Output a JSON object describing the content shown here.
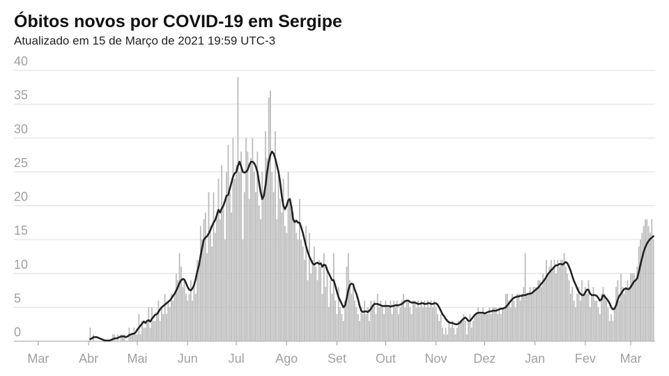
{
  "chart_data": {
    "type": "bar",
    "title": "Óbitos novos por COVID-19 em Sergipe",
    "subtitle": "Atualizado em 15 de Março de 2021 19:59 UTC-3",
    "x": [
      32,
      33,
      34,
      35,
      36,
      37,
      38,
      39,
      40,
      41,
      42,
      43,
      44,
      45,
      46,
      47,
      48,
      49,
      50,
      51,
      52,
      53,
      54,
      55,
      56,
      57,
      58,
      59,
      60,
      61,
      62,
      63,
      64,
      65,
      66,
      67,
      68,
      69,
      70,
      71,
      72,
      73,
      74,
      75,
      76,
      77,
      78,
      79,
      80,
      81,
      82,
      83,
      84,
      85,
      86,
      87,
      88,
      89,
      90,
      91,
      92,
      93,
      94,
      95,
      96,
      97,
      98,
      99,
      100,
      101,
      102,
      103,
      104,
      105,
      106,
      107,
      108,
      109,
      110,
      111,
      112,
      113,
      114,
      115,
      116,
      117,
      118,
      119,
      120,
      121,
      122,
      123,
      124,
      125,
      126,
      127,
      128,
      129,
      130,
      131,
      132,
      133,
      134,
      135,
      136,
      137,
      138,
      139,
      140,
      141,
      142,
      143,
      144,
      145,
      146,
      147,
      148,
      149,
      150,
      151,
      152,
      153,
      154,
      155,
      156,
      157,
      158,
      159,
      160,
      161,
      162,
      163,
      164,
      165,
      166,
      167,
      168,
      169,
      170,
      171,
      172,
      173,
      174,
      175,
      176,
      177,
      178,
      179,
      180,
      181,
      182,
      183,
      184,
      185,
      186,
      187,
      188,
      189,
      190,
      191,
      192,
      193,
      194,
      195,
      196,
      197,
      198,
      199,
      200,
      201,
      202,
      203,
      204,
      205,
      206,
      207,
      208,
      209,
      210,
      211,
      212,
      213,
      214,
      215,
      216,
      217,
      218,
      219,
      220,
      221,
      222,
      223,
      224,
      225,
      226,
      227,
      228,
      229,
      230,
      231,
      232,
      233,
      234,
      235,
      236,
      237,
      238,
      239,
      240,
      241,
      242,
      243,
      244,
      245,
      246,
      247,
      248,
      249,
      250,
      251,
      252,
      253,
      254,
      255,
      256,
      257,
      258,
      259,
      260,
      261,
      262,
      263,
      264,
      265,
      266,
      267,
      268,
      269,
      270,
      271,
      272,
      273,
      274,
      275,
      276,
      277,
      278,
      279,
      280,
      281,
      282,
      283,
      284,
      285,
      286,
      287,
      288,
      289,
      290,
      291,
      292,
      293,
      294,
      295,
      296,
      297,
      298,
      299,
      300,
      301,
      302,
      303,
      304,
      305,
      306,
      307,
      308,
      309,
      310,
      311,
      312,
      313,
      314,
      315,
      316,
      317,
      318,
      319,
      320,
      321,
      322,
      323,
      324,
      325,
      326,
      327,
      328,
      329,
      330,
      331,
      332,
      333,
      334,
      335,
      336,
      337,
      338,
      339,
      340,
      341,
      342,
      343,
      344,
      345,
      346,
      347,
      348,
      349,
      350,
      351,
      352,
      353,
      354,
      355,
      356,
      357,
      358,
      359,
      360,
      361,
      362,
      363,
      364,
      365,
      366,
      367,
      368,
      369,
      370,
      371,
      372,
      373,
      374,
      375,
      376,
      377,
      378,
      379
    ],
    "series": [
      {
        "type": "bar",
        "color": "#bdbdbd",
        "values": [
          2,
          0,
          1,
          0,
          0,
          0,
          0,
          0,
          0,
          0,
          0,
          0,
          0,
          0,
          1,
          1,
          0,
          1,
          0,
          1,
          1,
          1,
          0,
          0,
          2,
          1,
          1,
          2,
          1,
          1,
          4,
          1,
          3,
          2,
          2,
          3,
          5,
          2,
          5,
          3,
          3,
          4,
          6,
          3,
          5,
          4,
          7,
          4,
          6,
          5,
          7,
          6,
          7,
          10,
          9,
          13,
          11,
          8,
          9,
          7,
          6,
          7,
          9,
          6,
          8,
          7,
          12,
          11,
          17,
          15,
          18,
          19,
          13,
          22,
          17,
          14,
          22,
          16,
          19,
          24,
          18,
          26,
          20,
          15,
          25,
          29,
          22,
          19,
          30,
          24,
          26,
          39,
          25,
          28,
          15,
          22,
          30,
          28,
          21,
          27,
          30,
          25,
          22,
          28,
          20,
          18,
          25,
          22,
          31,
          27,
          36,
          37,
          25,
          22,
          31,
          18,
          25,
          21,
          19,
          24,
          17,
          16,
          25,
          21,
          20,
          19,
          18,
          16,
          15,
          21,
          15,
          14,
          12,
          17,
          9,
          16,
          10,
          12,
          14,
          11,
          9,
          12,
          11,
          7,
          13,
          8,
          11,
          5,
          9,
          7,
          13,
          6,
          4,
          8,
          5,
          4,
          3,
          6,
          11,
          13,
          9,
          7,
          8,
          6,
          5,
          4,
          3,
          5,
          4,
          6,
          4,
          5,
          3,
          6,
          5,
          6,
          4,
          7,
          5,
          6,
          5,
          4,
          6,
          5,
          5,
          6,
          4,
          6,
          5,
          6,
          4,
          5,
          6,
          7,
          5,
          6,
          6,
          5,
          4,
          6,
          6,
          5,
          6,
          5,
          6,
          5,
          6,
          5,
          6,
          5,
          6,
          5,
          6,
          5,
          4,
          3,
          4,
          2,
          1,
          2,
          1,
          3,
          2,
          3,
          2,
          1,
          2,
          3,
          3,
          3,
          4,
          3,
          1,
          3,
          4,
          2,
          3,
          4,
          4,
          5,
          4,
          4,
          5,
          4,
          4,
          4,
          5,
          4,
          5,
          5,
          5,
          4,
          5,
          4,
          5,
          5,
          7,
          7,
          6,
          5,
          7,
          6,
          5,
          7,
          7,
          6,
          7,
          8,
          13,
          7,
          7,
          8,
          7,
          8,
          8,
          8,
          9,
          9,
          8,
          10,
          9,
          12,
          10,
          11,
          12,
          11,
          12,
          10,
          12,
          11,
          12,
          12,
          13,
          11,
          10,
          9,
          7,
          8,
          6,
          5,
          7,
          8,
          6,
          9,
          7,
          8,
          7,
          9,
          5,
          7,
          8,
          6,
          6,
          5,
          4,
          7,
          8,
          7,
          6,
          5,
          3,
          4,
          3,
          5,
          8,
          9,
          6,
          10,
          8,
          7,
          8,
          9,
          8,
          10,
          10,
          10,
          9,
          11,
          14,
          15,
          16,
          17,
          18,
          18,
          17,
          16,
          18,
          15
        ]
      },
      {
        "type": "line",
        "color": "#222222",
        "values": [
          0.3,
          0.4,
          0.6,
          0.6,
          0.6,
          0.5,
          0.4,
          0.3,
          0.2,
          0.1,
          0.1,
          0.1,
          0.1,
          0.2,
          0.3,
          0.4,
          0.4,
          0.5,
          0.6,
          0.7,
          0.7,
          0.7,
          0.6,
          0.7,
          0.9,
          1.0,
          1.1,
          1.1,
          1.3,
          1.7,
          2.0,
          2.3,
          2.6,
          2.9,
          2.7,
          3.0,
          3.1,
          2.9,
          3.3,
          3.6,
          3.9,
          4.0,
          4.3,
          4.7,
          5.0,
          5.2,
          5.4,
          5.6,
          5.8,
          6.0,
          6.3,
          6.7,
          7.0,
          7.5,
          8.0,
          8.6,
          9.0,
          9.2,
          9.1,
          8.6,
          8.0,
          7.6,
          7.5,
          7.8,
          8.3,
          9.2,
          10.3,
          11.2,
          12.6,
          13.9,
          15.0,
          15.3,
          15.5,
          15.9,
          16.4,
          17.0,
          17.5,
          17.9,
          18.6,
          19.4,
          19.0,
          19.6,
          20.0,
          20.7,
          21.5,
          21.6,
          22.5,
          23.4,
          24.3,
          24.8,
          25.0,
          25.9,
          26.5,
          25.8,
          25.0,
          24.9,
          25.0,
          25.3,
          26.0,
          26.5,
          26.5,
          26.3,
          25.8,
          25.0,
          23.5,
          22.0,
          21.0,
          21.5,
          23.0,
          25.0,
          26.5,
          27.5,
          28.0,
          27.7,
          27.0,
          26.0,
          25.0,
          23.5,
          21.5,
          20.0,
          19.5,
          20.0,
          20.8,
          21.0,
          19.8,
          18.0,
          17.6,
          17.8,
          17.5,
          17.5,
          16.8,
          16.0,
          15.0,
          14.0,
          13.2,
          12.5,
          12.0,
          11.5,
          11.3,
          11.5,
          11.6,
          11.4,
          11.5,
          11.0,
          11.3,
          11.2,
          10.5,
          10.0,
          9.5,
          9.0,
          9.0,
          8.2,
          7.3,
          6.5,
          6.0,
          5.5,
          5.0,
          5.3,
          6.3,
          7.5,
          8.3,
          8.5,
          8.4,
          7.6,
          7.0,
          6.2,
          5.2,
          4.5,
          4.3,
          4.4,
          4.4,
          4.3,
          4.5,
          4.8,
          5.2,
          5.5,
          5.5,
          5.5,
          5.4,
          5.3,
          5.2,
          5.2,
          5.2,
          5.2,
          5.2,
          5.1,
          5.2,
          5.2,
          5.3,
          5.3,
          5.3,
          5.4,
          5.5,
          5.7,
          5.9,
          6.0,
          6.0,
          5.8,
          5.7,
          5.7,
          5.7,
          5.6,
          5.5,
          5.5,
          5.6,
          5.6,
          5.5,
          5.5,
          5.6,
          5.6,
          5.5,
          5.5,
          5.6,
          5.6,
          5.4,
          5.0,
          4.5,
          4.0,
          3.7,
          3.3,
          3.0,
          2.8,
          2.7,
          2.7,
          2.6,
          2.5,
          2.5,
          2.6,
          2.8,
          3.1,
          3.3,
          3.5,
          3.3,
          3.0,
          3.0,
          3.3,
          3.6,
          3.9,
          4.1,
          4.2,
          4.2,
          4.2,
          4.2,
          4.1,
          4.2,
          4.3,
          4.4,
          4.4,
          4.5,
          4.5,
          4.5,
          4.6,
          4.7,
          4.8,
          4.8,
          4.9,
          5.0,
          5.3,
          5.6,
          5.9,
          6.2,
          6.4,
          6.5,
          6.6,
          6.6,
          6.7,
          6.7,
          6.8,
          6.8,
          6.9,
          7.0,
          7.0,
          7.1,
          7.3,
          7.5,
          7.7,
          7.9,
          8.2,
          8.5,
          8.8,
          9.1,
          9.5,
          9.9,
          10.2,
          10.5,
          10.7,
          11.0,
          11.2,
          11.2,
          11.4,
          11.4,
          11.3,
          11.5,
          11.7,
          11.5,
          11.0,
          10.4,
          9.6,
          8.9,
          8.4,
          7.8,
          7.3,
          7.0,
          6.8,
          6.8,
          7.2,
          7.6,
          7.6,
          7.0,
          6.8,
          6.8,
          6.8,
          6.7,
          6.4,
          6.0,
          6.2,
          6.8,
          6.6,
          6.3,
          6.0,
          5.6,
          5.0,
          4.7,
          4.8,
          5.3,
          6.1,
          6.7,
          7.0,
          7.4,
          7.7,
          7.8,
          7.7,
          7.7,
          8.0,
          8.4,
          8.8,
          9.0,
          9.3,
          10.2,
          11.3,
          12.3,
          13.2,
          13.9,
          14.4,
          14.8,
          15.1,
          15.3,
          15.5
        ]
      }
    ],
    "xlim": [
      -15,
      380
    ],
    "xticks": [
      {
        "value": 0,
        "label": "Mar"
      },
      {
        "value": 31,
        "label": "Abr"
      },
      {
        "value": 61,
        "label": "Mai"
      },
      {
        "value": 92,
        "label": "Jun"
      },
      {
        "value": 122,
        "label": "Jul"
      },
      {
        "value": 153,
        "label": "Ago"
      },
      {
        "value": 184,
        "label": "Set"
      },
      {
        "value": 214,
        "label": "Out"
      },
      {
        "value": 245,
        "label": "Nov"
      },
      {
        "value": 275,
        "label": "Dez"
      },
      {
        "value": 306,
        "label": "Jan"
      },
      {
        "value": 337,
        "label": "Fev"
      },
      {
        "value": 365,
        "label": "Mar"
      }
    ],
    "ylim": [
      0,
      40
    ],
    "yticks": [
      0,
      5,
      10,
      15,
      20,
      25,
      30,
      35,
      40
    ],
    "grid": true
  }
}
